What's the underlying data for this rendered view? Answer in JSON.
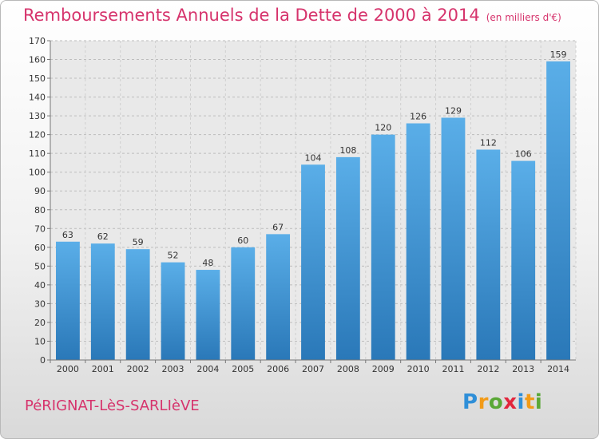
{
  "title": "Remboursements Annuels de la Dette de 2000 à 2014",
  "unit": "(en milliers d'€)",
  "commune": "PéRIGNAT-LèS-SARLIèVE",
  "logo": {
    "text": "Proxiti",
    "letters": [
      {
        "char": "P",
        "color": "#2f8fd8"
      },
      {
        "char": "r",
        "color": "#f29b18"
      },
      {
        "char": "o",
        "color": "#5aa836"
      },
      {
        "char": "x",
        "color": "#e2263d"
      },
      {
        "char": "i",
        "color": "#2f8fd8"
      },
      {
        "char": "t",
        "color": "#f29b18"
      },
      {
        "char": "i",
        "color": "#5aa836"
      }
    ]
  },
  "chart_data": {
    "type": "bar",
    "title": "Remboursements Annuels de la Dette de 2000 à 2014",
    "categories": [
      "2000",
      "2001",
      "2002",
      "2003",
      "2004",
      "2005",
      "2006",
      "2007",
      "2008",
      "2009",
      "2010",
      "2011",
      "2012",
      "2013",
      "2014"
    ],
    "values": [
      63,
      62,
      59,
      52,
      48,
      60,
      67,
      104,
      108,
      120,
      126,
      129,
      112,
      106,
      159
    ],
    "ylim": [
      0,
      170
    ],
    "yticks": [
      0,
      10,
      20,
      30,
      40,
      50,
      60,
      70,
      80,
      90,
      100,
      110,
      120,
      130,
      140,
      150,
      160,
      170
    ],
    "grid": true,
    "bar_color_top": "#5aaee8",
    "bar_color_bottom": "#2a78b8"
  }
}
